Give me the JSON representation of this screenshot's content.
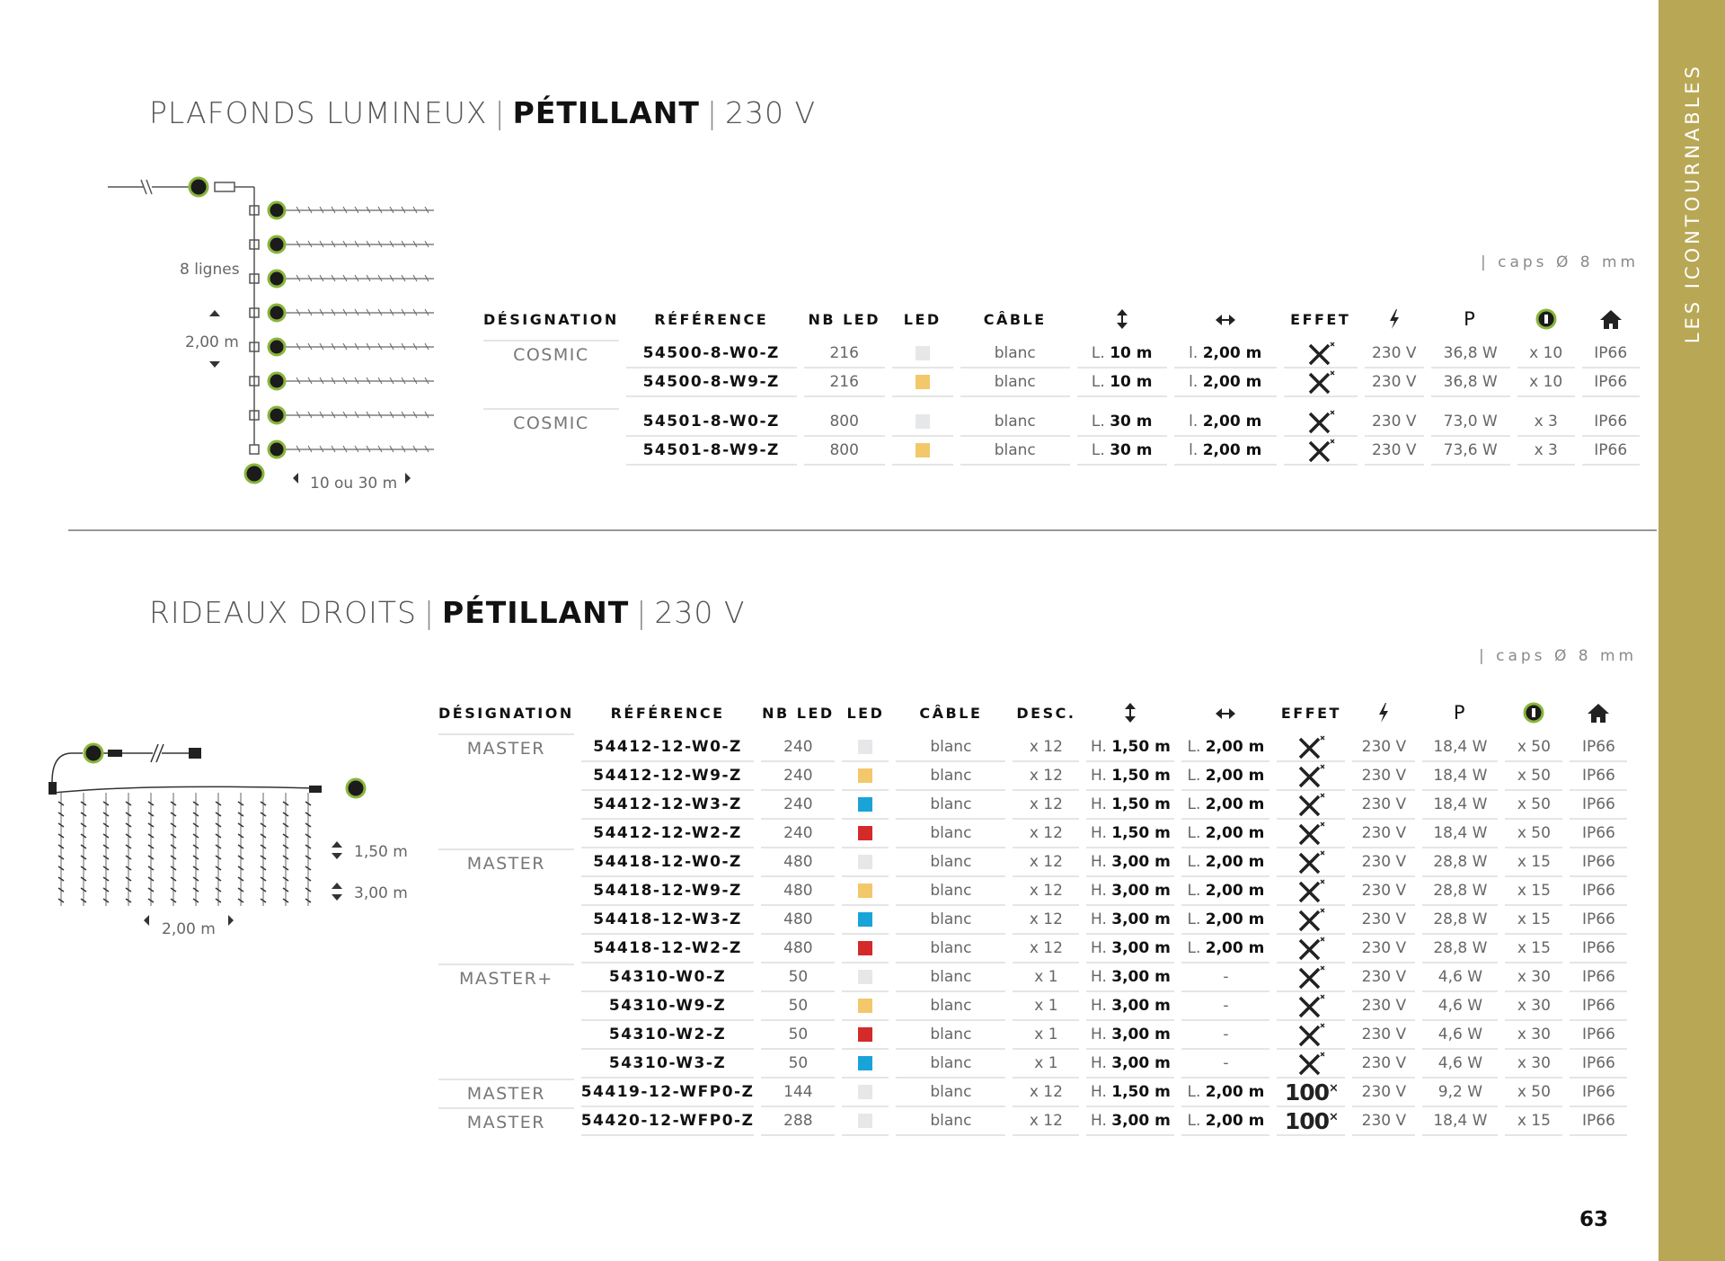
{
  "sidebar": {
    "label": "LES ICONTOURNABLES"
  },
  "section1": {
    "title_light": "PLAFONDS LUMINEUX",
    "title_bold": "PÉTILLANT",
    "title_volt": "230 V",
    "caps": "| caps Ø 8 mm",
    "diagram": {
      "lines_label": "8 lignes",
      "height_label": "2,00 m",
      "length_label": "10 ou 30 m"
    },
    "headers": [
      "DÉSIGNATION",
      "RÉFÉRENCE",
      "NB LED",
      "LED",
      "CÂBLE"
    ],
    "rows": [
      {
        "des": "COSMIC",
        "ref": "54500-8-W0-Z",
        "nb": "216",
        "color": "#e6e7e9",
        "cable": "blanc",
        "len_pre": "L.",
        "len": "10 m",
        "wid_pre": "l.",
        "wid": "2,00 m",
        "volt": "230 V",
        "power": "36,8 W",
        "conn": "x 10",
        "ip": "IP66"
      },
      {
        "des": "",
        "ref": "54500-8-W9-Z",
        "nb": "216",
        "color": "#f2c86b",
        "cable": "blanc",
        "len_pre": "L.",
        "len": "10 m",
        "wid_pre": "l.",
        "wid": "2,00 m",
        "volt": "230 V",
        "power": "36,8 W",
        "conn": "x 10",
        "ip": "IP66"
      },
      {
        "des": "COSMIC",
        "ref": "54501-8-W0-Z",
        "nb": "800",
        "color": "#e6e7e9",
        "cable": "blanc",
        "len_pre": "L.",
        "len": "30 m",
        "wid_pre": "l.",
        "wid": "2,00 m",
        "volt": "230 V",
        "power": "73,0 W",
        "conn": "x 3",
        "ip": "IP66"
      },
      {
        "des": "",
        "ref": "54501-8-W9-Z",
        "nb": "800",
        "color": "#f2c86b",
        "cable": "blanc",
        "len_pre": "L.",
        "len": "30 m",
        "wid_pre": "l.",
        "wid": "2,00 m",
        "volt": "230 V",
        "power": "73,6 W",
        "conn": "x 3",
        "ip": "IP66"
      }
    ]
  },
  "section2": {
    "title_light": "RIDEAUX DROITS",
    "title_bold": "PÉTILLANT",
    "title_volt": "230 V",
    "caps": "| caps Ø 8 mm",
    "diagram": {
      "h1": "1,50 m",
      "h2": "3,00 m",
      "width": "2,00 m"
    },
    "headers": [
      "DÉSIGNATION",
      "RÉFÉRENCE",
      "NB LED",
      "LED",
      "CÂBLE",
      "DESC."
    ],
    "rows": [
      {
        "des": "MASTER",
        "ref": "54412-12-W0-Z",
        "nb": "240",
        "color": "#e6e7e9",
        "cable": "blanc",
        "desc": "x 12",
        "h": "1,50 m",
        "l": "2,00 m",
        "effect": "x",
        "volt": "230 V",
        "power": "18,4 W",
        "conn": "x 50",
        "ip": "IP66"
      },
      {
        "des": "",
        "ref": "54412-12-W9-Z",
        "nb": "240",
        "color": "#f2c86b",
        "cable": "blanc",
        "desc": "x 12",
        "h": "1,50 m",
        "l": "2,00 m",
        "effect": "x",
        "volt": "230 V",
        "power": "18,4 W",
        "conn": "x 50",
        "ip": "IP66"
      },
      {
        "des": "",
        "ref": "54412-12-W3-Z",
        "nb": "240",
        "color": "#1aa3d6",
        "cable": "blanc",
        "desc": "x 12",
        "h": "1,50 m",
        "l": "2,00 m",
        "effect": "x",
        "volt": "230 V",
        "power": "18,4 W",
        "conn": "x 50",
        "ip": "IP66"
      },
      {
        "des": "",
        "ref": "54412-12-W2-Z",
        "nb": "240",
        "color": "#d42a2a",
        "cable": "blanc",
        "desc": "x 12",
        "h": "1,50 m",
        "l": "2,00 m",
        "effect": "x",
        "volt": "230 V",
        "power": "18,4 W",
        "conn": "x 50",
        "ip": "IP66"
      },
      {
        "des": "MASTER",
        "ref": "54418-12-W0-Z",
        "nb": "480",
        "color": "#e6e7e9",
        "cable": "blanc",
        "desc": "x 12",
        "h": "3,00 m",
        "l": "2,00 m",
        "effect": "x",
        "volt": "230 V",
        "power": "28,8 W",
        "conn": "x 15",
        "ip": "IP66"
      },
      {
        "des": "",
        "ref": "54418-12-W9-Z",
        "nb": "480",
        "color": "#f2c86b",
        "cable": "blanc",
        "desc": "x 12",
        "h": "3,00 m",
        "l": "2,00 m",
        "effect": "x",
        "volt": "230 V",
        "power": "28,8 W",
        "conn": "x 15",
        "ip": "IP66"
      },
      {
        "des": "",
        "ref": "54418-12-W3-Z",
        "nb": "480",
        "color": "#1aa3d6",
        "cable": "blanc",
        "desc": "x 12",
        "h": "3,00 m",
        "l": "2,00 m",
        "effect": "x",
        "volt": "230 V",
        "power": "28,8 W",
        "conn": "x 15",
        "ip": "IP66"
      },
      {
        "des": "",
        "ref": "54418-12-W2-Z",
        "nb": "480",
        "color": "#d42a2a",
        "cable": "blanc",
        "desc": "x 12",
        "h": "3,00 m",
        "l": "2,00 m",
        "effect": "x",
        "volt": "230 V",
        "power": "28,8 W",
        "conn": "x 15",
        "ip": "IP66"
      },
      {
        "des": "MASTER+",
        "ref": "54310-W0-Z",
        "nb": "50",
        "color": "#e6e7e9",
        "cable": "blanc",
        "desc": "x 1",
        "h": "3,00 m",
        "l": "-",
        "effect": "x",
        "volt": "230 V",
        "power": "4,6 W",
        "conn": "x 30",
        "ip": "IP66"
      },
      {
        "des": "",
        "ref": "54310-W9-Z",
        "nb": "50",
        "color": "#f2c86b",
        "cable": "blanc",
        "desc": "x 1",
        "h": "3,00 m",
        "l": "-",
        "effect": "x",
        "volt": "230 V",
        "power": "4,6 W",
        "conn": "x 30",
        "ip": "IP66"
      },
      {
        "des": "",
        "ref": "54310-W2-Z",
        "nb": "50",
        "color": "#d42a2a",
        "cable": "blanc",
        "desc": "x 1",
        "h": "3,00 m",
        "l": "-",
        "effect": "x",
        "volt": "230 V",
        "power": "4,6 W",
        "conn": "x 30",
        "ip": "IP66"
      },
      {
        "des": "",
        "ref": "54310-W3-Z",
        "nb": "50",
        "color": "#1aa3d6",
        "cable": "blanc",
        "desc": "x 1",
        "h": "3,00 m",
        "l": "-",
        "effect": "x",
        "volt": "230 V",
        "power": "4,6 W",
        "conn": "x 30",
        "ip": "IP66"
      },
      {
        "des": "MASTER",
        "ref": "54419-12-WFP0-Z",
        "nb": "144",
        "color": "#e6e7e9",
        "cable": "blanc",
        "desc": "x 12",
        "h": "1,50 m",
        "l": "2,00 m",
        "effect": "100",
        "volt": "230 V",
        "power": "9,2 W",
        "conn": "x 50",
        "ip": "IP66"
      },
      {
        "des": "MASTER",
        "ref": "54420-12-WFP0-Z",
        "nb": "288",
        "color": "#e6e7e9",
        "cable": "blanc",
        "desc": "x 12",
        "h": "3,00 m",
        "l": "2,00 m",
        "effect": "100",
        "volt": "230 V",
        "power": "18,4 W",
        "conn": "x 15",
        "ip": "IP66"
      }
    ]
  },
  "labels": {
    "h_prefix": "H.",
    "l_prefix": "L.",
    "effect_header": "EFFET",
    "power_header": "P",
    "effect100": "100"
  },
  "page_number": "63"
}
